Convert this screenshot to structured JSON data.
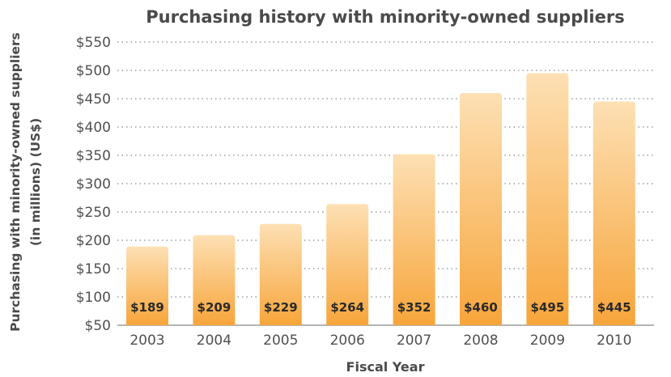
{
  "chart_data": {
    "type": "bar",
    "title": "Purchasing history with minority-owned suppliers",
    "ylabel_lines": [
      "Purchasing with minority-owned suppliers",
      "(in millions) (US$)"
    ],
    "xlabel": "Fiscal Year",
    "categories": [
      "2003",
      "2004",
      "2005",
      "2006",
      "2007",
      "2008",
      "2009",
      "2010"
    ],
    "values": [
      189,
      209,
      229,
      264,
      352,
      460,
      495,
      445
    ],
    "value_labels": [
      "$189",
      "$209",
      "$229",
      "$264",
      "$352",
      "$460",
      "$495",
      "$445"
    ],
    "ylim": [
      50,
      550
    ],
    "yticks": [
      50,
      100,
      150,
      200,
      250,
      300,
      350,
      400,
      450,
      500,
      550
    ],
    "ytick_labels": [
      "$50",
      "$100",
      "$150",
      "$200",
      "$250",
      "$300",
      "$350",
      "$400",
      "$450",
      "$500",
      "$550"
    ],
    "grid": true,
    "colors": {
      "bar_top": "#fde0b4",
      "bar_bottom": "#f7a53a",
      "text": "#4a4a4a"
    }
  }
}
